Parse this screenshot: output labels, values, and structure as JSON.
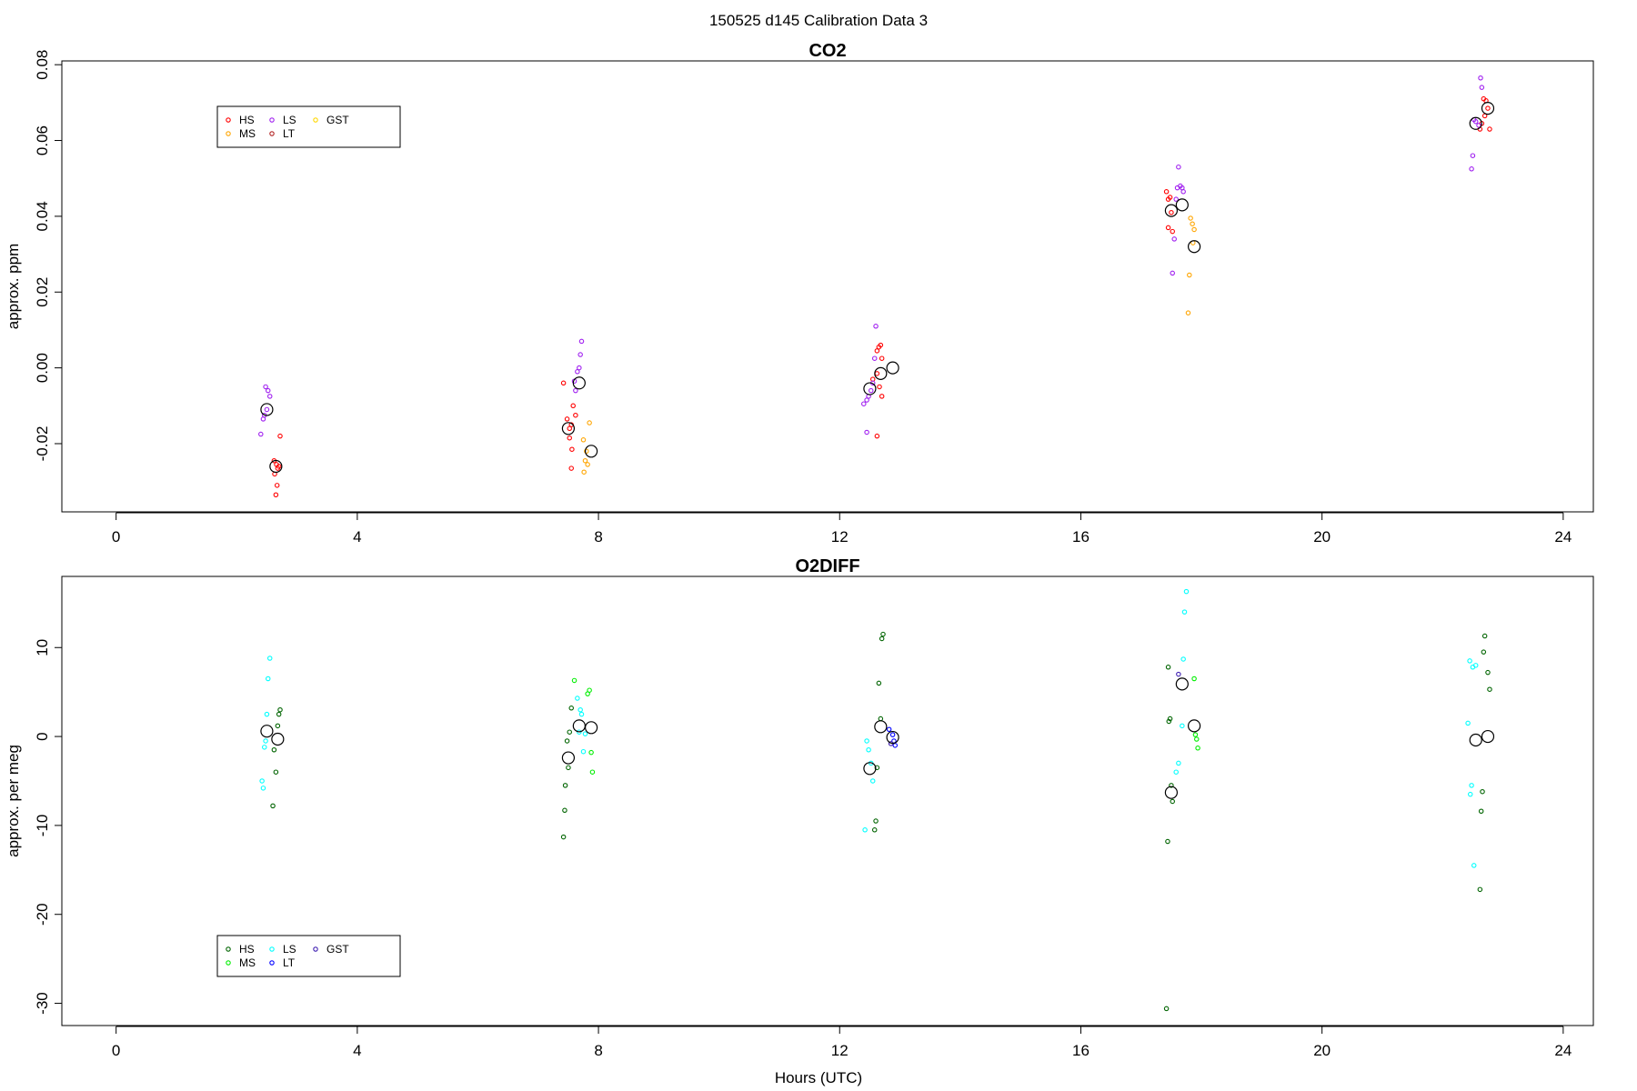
{
  "figure": {
    "title": "150525   d145   Calibration Data 3",
    "xlabel": "Hours (UTC)"
  },
  "chart_data": [
    {
      "type": "scatter",
      "title": "CO2",
      "xlabel": "",
      "ylabel": "approx. ppm",
      "xlim": [
        -0.9,
        24.5
      ],
      "ylim": [
        -0.038,
        0.081
      ],
      "xticks": [
        0,
        4,
        8,
        12,
        16,
        20,
        24
      ],
      "yticks": [
        -0.02,
        0.0,
        0.02,
        0.04,
        0.06,
        0.08
      ],
      "ytick_labels": [
        "-0.02",
        "0.00",
        "0.02",
        "0.04",
        "0.06",
        "0.08"
      ],
      "grid": false,
      "legend": {
        "placement": "top-left",
        "entries": [
          {
            "name": "HS",
            "color": "#ff0000"
          },
          {
            "name": "MS",
            "color": "#ffa500"
          },
          {
            "name": "LS",
            "color": "#a020f0"
          },
          {
            "name": "LT",
            "color": "#b22222"
          },
          {
            "name": "GST",
            "color": "#ffd700"
          }
        ]
      },
      "series": [
        {
          "name": "HS",
          "color": "#ff0000",
          "points": [
            [
              2.62,
              -0.0245
            ],
            [
              2.66,
              -0.0255
            ],
            [
              2.68,
              -0.0265
            ],
            [
              2.7,
              -0.026
            ],
            [
              2.63,
              -0.028
            ],
            [
              2.67,
              -0.031
            ],
            [
              2.65,
              -0.0335
            ],
            [
              2.72,
              -0.018
            ],
            [
              7.42,
              -0.004
            ],
            [
              7.48,
              -0.0135
            ],
            [
              7.52,
              -0.016
            ],
            [
              7.55,
              -0.015
            ],
            [
              7.58,
              -0.01
            ],
            [
              7.62,
              -0.0125
            ],
            [
              7.52,
              -0.0185
            ],
            [
              7.56,
              -0.0215
            ],
            [
              7.55,
              -0.0265
            ],
            [
              12.55,
              -0.003
            ],
            [
              12.62,
              0.0045
            ],
            [
              12.65,
              0.0055
            ],
            [
              12.68,
              0.006
            ],
            [
              12.7,
              0.0025
            ],
            [
              12.62,
              -0.0015
            ],
            [
              12.66,
              -0.005
            ],
            [
              12.7,
              -0.0075
            ],
            [
              12.62,
              -0.018
            ],
            [
              17.42,
              0.0465
            ],
            [
              17.45,
              0.0445
            ],
            [
              17.48,
              0.045
            ],
            [
              17.5,
              0.041
            ],
            [
              17.45,
              0.037
            ],
            [
              17.52,
              0.036
            ],
            [
              22.62,
              0.063
            ],
            [
              22.68,
              0.071
            ],
            [
              22.72,
              0.0705
            ],
            [
              22.75,
              0.0685
            ],
            [
              22.7,
              0.0665
            ],
            [
              22.65,
              0.0645
            ],
            [
              22.78,
              0.063
            ]
          ]
        },
        {
          "name": "MS",
          "color": "#ffa500",
          "points": [
            [
              7.75,
              -0.019
            ],
            [
              7.8,
              -0.022
            ],
            [
              7.78,
              -0.0245
            ],
            [
              7.82,
              -0.0255
            ],
            [
              7.76,
              -0.0275
            ],
            [
              7.85,
              -0.0145
            ],
            [
              17.82,
              0.0395
            ],
            [
              17.85,
              0.038
            ],
            [
              17.88,
              0.0365
            ],
            [
              17.86,
              0.033
            ],
            [
              17.8,
              0.0245
            ],
            [
              17.78,
              0.0145
            ]
          ]
        },
        {
          "name": "LS",
          "color": "#a020f0",
          "points": [
            [
              2.48,
              -0.005
            ],
            [
              2.52,
              -0.006
            ],
            [
              2.55,
              -0.0075
            ],
            [
              2.5,
              -0.011
            ],
            [
              2.46,
              -0.0125
            ],
            [
              2.44,
              -0.0135
            ],
            [
              2.4,
              -0.0175
            ],
            [
              7.62,
              -0.006
            ],
            [
              7.65,
              -0.001
            ],
            [
              7.68,
              0.0
            ],
            [
              7.7,
              0.0035
            ],
            [
              7.72,
              0.007
            ],
            [
              7.6,
              -0.0035
            ],
            [
              12.4,
              -0.0095
            ],
            [
              12.45,
              -0.0085
            ],
            [
              12.48,
              -0.0075
            ],
            [
              12.52,
              -0.006
            ],
            [
              12.55,
              -0.004
            ],
            [
              12.58,
              0.0025
            ],
            [
              12.6,
              0.011
            ],
            [
              12.45,
              -0.017
            ],
            [
              17.6,
              0.0475
            ],
            [
              17.65,
              0.048
            ],
            [
              17.68,
              0.0475
            ],
            [
              17.7,
              0.0465
            ],
            [
              17.62,
              0.053
            ],
            [
              17.58,
              0.0445
            ],
            [
              17.55,
              0.034
            ],
            [
              17.52,
              0.025
            ],
            [
              22.52,
              0.0655
            ],
            [
              22.55,
              0.065
            ],
            [
              22.6,
              0.064
            ],
            [
              22.65,
              0.074
            ],
            [
              22.63,
              0.0765
            ],
            [
              22.5,
              0.056
            ],
            [
              22.48,
              0.0525
            ]
          ]
        },
        {
          "name": "LT",
          "color": "#b22222",
          "points": []
        },
        {
          "name": "GST",
          "color": "#ffd700",
          "points": []
        }
      ],
      "means": [
        [
          2.5,
          -0.011
        ],
        [
          2.65,
          -0.026
        ],
        [
          7.5,
          -0.016
        ],
        [
          7.68,
          -0.004
        ],
        [
          7.88,
          -0.022
        ],
        [
          12.5,
          -0.0055
        ],
        [
          12.68,
          -0.0015
        ],
        [
          12.88,
          0.0
        ],
        [
          17.5,
          0.0415
        ],
        [
          17.68,
          0.043
        ],
        [
          17.88,
          0.032
        ],
        [
          22.55,
          0.0645
        ],
        [
          22.75,
          0.0685
        ]
      ]
    },
    {
      "type": "scatter",
      "title": "O2DIFF",
      "xlabel": "Hours (UTC)",
      "ylabel": "approx. per meg",
      "xlim": [
        -0.9,
        24.5
      ],
      "ylim": [
        -32.5,
        18.0
      ],
      "xticks": [
        0,
        4,
        8,
        12,
        16,
        20,
        24
      ],
      "yticks": [
        -30,
        -20,
        -10,
        0,
        10
      ],
      "ytick_labels": [
        "-30",
        "-20",
        "-10",
        "0",
        "10"
      ],
      "grid": false,
      "legend": {
        "placement": "bottom-left",
        "entries": [
          {
            "name": "HS",
            "color": "#006400"
          },
          {
            "name": "MS",
            "color": "#00ee00"
          },
          {
            "name": "LS",
            "color": "#00ffff"
          },
          {
            "name": "LT",
            "color": "#0000ff"
          },
          {
            "name": "GST",
            "color": "#3f1fb2"
          }
        ]
      },
      "series": [
        {
          "name": "HS",
          "color": "#006400",
          "points": [
            [
              2.72,
              3.0
            ],
            [
              2.7,
              2.5
            ],
            [
              2.68,
              1.2
            ],
            [
              2.62,
              -1.5
            ],
            [
              2.65,
              -4.0
            ],
            [
              2.6,
              -7.8
            ],
            [
              7.55,
              3.2
            ],
            [
              7.52,
              0.5
            ],
            [
              7.48,
              -0.5
            ],
            [
              7.5,
              -3.5
            ],
            [
              7.45,
              -5.5
            ],
            [
              7.44,
              -8.3
            ],
            [
              7.42,
              -11.3
            ],
            [
              12.65,
              6.0
            ],
            [
              12.7,
              11.0
            ],
            [
              12.72,
              11.5
            ],
            [
              12.68,
              2.0
            ],
            [
              12.62,
              -3.5
            ],
            [
              12.6,
              -9.5
            ],
            [
              12.58,
              -10.5
            ],
            [
              17.45,
              7.8
            ],
            [
              17.48,
              2.0
            ],
            [
              17.46,
              1.7
            ],
            [
              17.5,
              -5.5
            ],
            [
              17.52,
              -7.3
            ],
            [
              17.44,
              -11.8
            ],
            [
              17.42,
              -30.6
            ],
            [
              22.7,
              11.3
            ],
            [
              22.68,
              9.5
            ],
            [
              22.75,
              7.2
            ],
            [
              22.78,
              5.3
            ],
            [
              22.66,
              -6.2
            ],
            [
              22.64,
              -8.4
            ],
            [
              22.62,
              -17.2
            ]
          ]
        },
        {
          "name": "MS",
          "color": "#00ee00",
          "points": [
            [
              7.6,
              6.3
            ],
            [
              7.85,
              5.2
            ],
            [
              7.82,
              4.8
            ],
            [
              7.88,
              -1.8
            ],
            [
              7.9,
              -4.0
            ],
            [
              17.88,
              6.5
            ],
            [
              17.9,
              0.2
            ],
            [
              17.92,
              -0.3
            ],
            [
              17.94,
              -1.3
            ]
          ]
        },
        {
          "name": "LS",
          "color": "#00ffff",
          "points": [
            [
              2.55,
              8.8
            ],
            [
              2.52,
              6.5
            ],
            [
              2.5,
              2.5
            ],
            [
              2.48,
              -0.5
            ],
            [
              2.46,
              -1.2
            ],
            [
              2.42,
              -5.0
            ],
            [
              2.44,
              -5.8
            ],
            [
              7.65,
              4.3
            ],
            [
              7.7,
              3.0
            ],
            [
              7.72,
              2.5
            ],
            [
              7.68,
              0.5
            ],
            [
              7.78,
              0.3
            ],
            [
              7.75,
              -1.7
            ],
            [
              12.45,
              -0.5
            ],
            [
              12.48,
              -1.5
            ],
            [
              12.52,
              -3.0
            ],
            [
              12.55,
              -5.0
            ],
            [
              12.42,
              -10.5
            ],
            [
              17.75,
              16.3
            ],
            [
              17.72,
              14.0
            ],
            [
              17.7,
              8.7
            ],
            [
              17.68,
              1.2
            ],
            [
              17.62,
              -3.0
            ],
            [
              17.58,
              -4.0
            ],
            [
              22.45,
              8.5
            ],
            [
              22.5,
              7.8
            ],
            [
              22.55,
              8.0
            ],
            [
              22.42,
              1.5
            ],
            [
              22.48,
              -5.5
            ],
            [
              22.46,
              -6.5
            ],
            [
              22.52,
              -14.5
            ]
          ]
        },
        {
          "name": "LT",
          "color": "#0000ff",
          "points": [
            [
              12.82,
              0.8
            ],
            [
              12.88,
              0.2
            ],
            [
              12.9,
              -0.5
            ],
            [
              12.92,
              -1.0
            ]
          ]
        },
        {
          "name": "GST",
          "color": "#3f1fb2",
          "points": [
            [
              17.62,
              7.0
            ],
            [
              12.85,
              -0.8
            ]
          ]
        }
      ],
      "means": [
        [
          2.5,
          0.6
        ],
        [
          2.68,
          -0.3
        ],
        [
          7.5,
          -2.4
        ],
        [
          7.68,
          1.2
        ],
        [
          7.88,
          1.0
        ],
        [
          12.5,
          -3.6
        ],
        [
          12.68,
          1.1
        ],
        [
          12.88,
          -0.1
        ],
        [
          17.5,
          -6.3
        ],
        [
          17.68,
          5.9
        ],
        [
          17.88,
          1.2
        ],
        [
          22.55,
          -0.4
        ],
        [
          22.75,
          0.0
        ]
      ]
    }
  ]
}
